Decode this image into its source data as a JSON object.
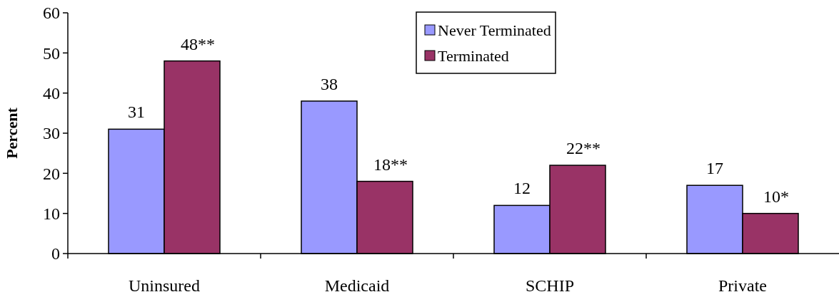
{
  "chart_data": {
    "type": "bar",
    "ylabel": "Percent",
    "categories": [
      "Uninsured",
      "Medicaid",
      "SCHIP",
      "Private"
    ],
    "series": [
      {
        "name": "Never Terminated",
        "color": "#9999ff",
        "values": [
          31,
          38,
          12,
          17
        ],
        "value_labels": [
          "31",
          "38",
          "12",
          "17"
        ]
      },
      {
        "name": "Terminated",
        "color": "#993366",
        "values": [
          48,
          18,
          22,
          10
        ],
        "value_labels": [
          "48**",
          "18**",
          "22**",
          "10*"
        ]
      }
    ],
    "ylim": [
      0,
      60
    ],
    "yticks": [
      0,
      10,
      20,
      30,
      40,
      50,
      60
    ],
    "grid": false,
    "legend": "top"
  }
}
